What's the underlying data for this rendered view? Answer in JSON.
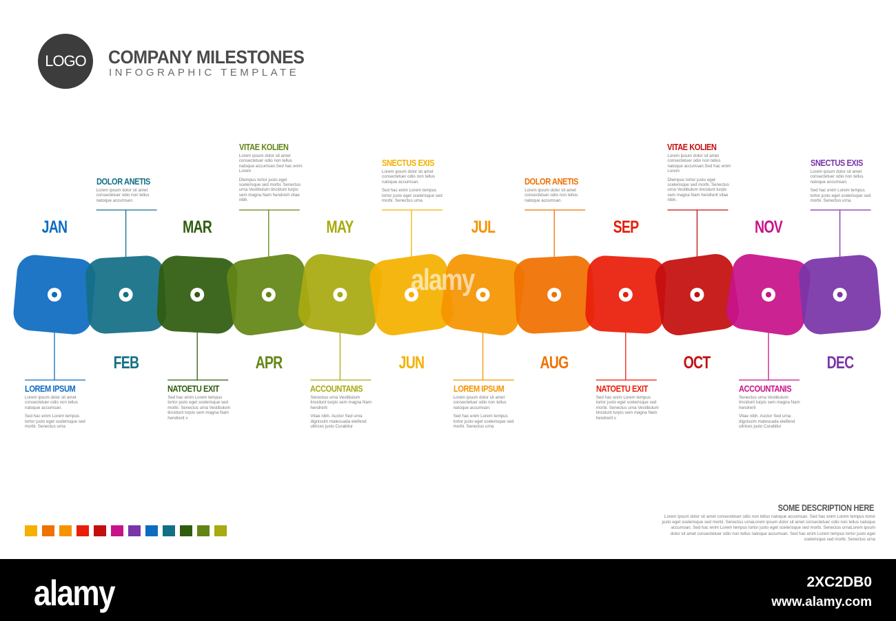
{
  "header": {
    "logo": "LOGO",
    "title": "COMPANY MILESTONES",
    "subtitle": "INFOGRAPHIC TEMPLATE"
  },
  "months": [
    {
      "label": "JAN",
      "color": "#0e6cc0",
      "position": "above",
      "entry": {
        "title": "LOREM IPSUM",
        "text1": "Lorem ipsum dolor sit amet consectetuer odio non tellus natoque accumsan.",
        "text2": "Sed hac enim Lorem tempus tortor justo eget scelerisque sed morbi. Senectus urna"
      }
    },
    {
      "label": "FEB",
      "color": "#136f86",
      "position": "below",
      "entry": {
        "title": "DOLOR ANETIS",
        "text1": "Lorem ipsum dolor sit amet consectetuer odio non tellus natoque accumsan.",
        "text2": ""
      }
    },
    {
      "label": "MAR",
      "color": "#2f5c0f",
      "position": "above",
      "entry": {
        "title": "NATOETU EXIT",
        "text1": "Sed hac enim Lorem tempus tortor justo eget scelerisque sed morbi. Senectus urna Vestibulum tincidunt turpis sem magna Nam hendrerit v",
        "text2": ""
      }
    },
    {
      "label": "APR",
      "color": "#638515",
      "position": "below",
      "entry": {
        "title": "VITAE KOLIEN",
        "text1": "Lorem ipsum dolor sit amet consectetuer odio non tellus natoque accumsan.Sed hac enim Lorem",
        "text2": "Dtempus tortor justo eget scelerisque sed morbi. Senectus urna Vestibulum tincidunt turpis sem magna Nam hendrerit vitae nibh."
      }
    },
    {
      "label": "MAY",
      "color": "#a8aa10",
      "position": "above",
      "entry": {
        "title": "ACCOUNTANIS",
        "text1": "Senectus urna Vestibulum tincidunt turpis sem magna Nam hendrerit",
        "text2": "Vitae nibh. Auctor Sed urna dignissim malesuada eleifend ultrices justo Curabitur"
      }
    },
    {
      "label": "JUN",
      "color": "#f5b000",
      "position": "below",
      "entry": {
        "title": "SNECTUS EXIS",
        "text1": "Lorem ipsum dolor sit amet consectetuer odio non tellus natoque accumsan.",
        "text2": "Sed hac enim Lorem tempus tortor justo eget scelerisque sed morbi. Senectus urna"
      }
    },
    {
      "label": "JUL",
      "color": "#f59400",
      "position": "above",
      "entry": {
        "title": "LOREM IPSUM",
        "text1": "Lorem ipsum dolor sit amet consectetuer odio non tellus natoque accumsan.",
        "text2": "Sed hac enim Lorem tempus tortor justo eget scelerisque sed morbi. Senectus urna"
      }
    },
    {
      "label": "AUG",
      "color": "#f07000",
      "position": "below",
      "entry": {
        "title": "DOLOR ANETIS",
        "text1": "Lorem ipsum dolor sit amet consectetuer odio non tellus natoque accumsan.",
        "text2": ""
      }
    },
    {
      "label": "SEP",
      "color": "#e81e0a",
      "position": "above",
      "entry": {
        "title": "NATOETU EXIT",
        "text1": "Sed hac enim Lorem tempus tortor justo eget scelerisque sed morbi. Senectus urna Vestibulum tincidunt turpis sem magna Nam hendrerit v",
        "text2": ""
      }
    },
    {
      "label": "OCT",
      "color": "#c40e0e",
      "position": "below",
      "entry": {
        "title": "VITAE KOLIEN",
        "text1": "Lorem ipsum dolor sit amet consectetuer odio non tellus natoque accumsan.Sed hac enim Lorem",
        "text2": "Dtempus tortor justo eget scelerisque sed morbi. Senectus urna Vestibulum tincidunt turpis sem magna Nam hendrerit vitae nibh."
      }
    },
    {
      "label": "NOV",
      "color": "#c8128a",
      "position": "above",
      "entry": {
        "title": "ACCOUNTANIS",
        "text1": "Senectus urna Vestibulum tincidunt turpis sem magna Nam hendrerit",
        "text2": "Vitae nibh. Auctor Sed urna dignissim malesuada eleifend ultrices justo Curabitur"
      }
    },
    {
      "label": "DEC",
      "color": "#7a35a8",
      "position": "below",
      "entry": {
        "title": "SNECTUS EXIS",
        "text1": "Lorem ipsum dolor sit amet consectetuer odio non tellus natoque accumsan.",
        "text2": "Sed hac enim Lorem tempus tortor justo eget scelerisque sed morbi. Senectus urna"
      }
    }
  ],
  "swatches": [
    "#f5b000",
    "#f07000",
    "#f59400",
    "#e81e0a",
    "#c40e0e",
    "#c8128a",
    "#7a35a8",
    "#0e6cc0",
    "#136f86",
    "#2f5c0f",
    "#638515",
    "#a8aa10"
  ],
  "description": {
    "title": "SOME DESCRIPTION HERE",
    "text": "Lorem ipsum dolor sit amet consectetuer odio non tellus natoque accumsan. Sed hac enim Lorem tempus tortor justo eget scelerisque sed morbi. Senectus urnaLorem ipsum dolor sit amet consectetuer odio non tellus natoque accumsan. Sed hac enim Lorem tempus tortor justo eget scelerisque sed morbi. Senectus urnaLorem ipsum dolor sit amet consectetuer odio non tellus natoque accumsan. Sed hac enim Lorem tempus tortor justo eget scelerisque sed morbi. Senectus urna"
  },
  "watermark": "alamy",
  "footer": {
    "logo": "alamy",
    "code": "2XC2DB0",
    "url": "www.alamy.com"
  }
}
